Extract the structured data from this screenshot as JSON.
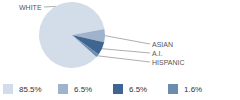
{
  "chart_data": {
    "type": "pie",
    "categories": [
      "WHITE",
      "ASIAN",
      "A.I.",
      "HISPANIC"
    ],
    "values": [
      85.5,
      6.5,
      6.5,
      1.6
    ],
    "value_labels": [
      "85.5%",
      "6.5%",
      "6.5%",
      "1.6%"
    ],
    "colors": [
      "#d3dde9",
      "#9fb4cc",
      "#3e6690",
      "#6d8db0"
    ]
  }
}
